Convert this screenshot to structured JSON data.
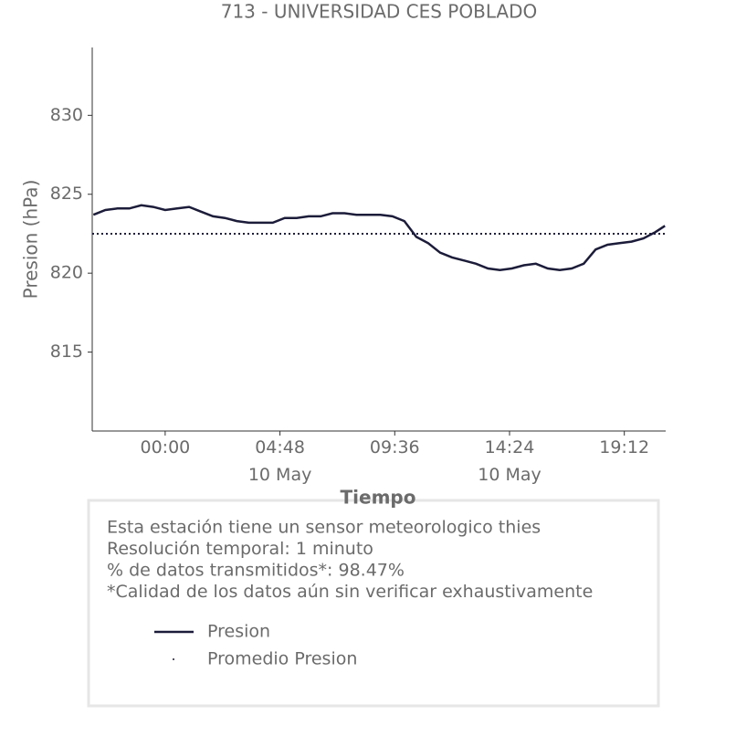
{
  "chart_data": {
    "type": "line",
    "title": "713 - UNIVERSIDAD CES POBLADO",
    "y_label": "Presion (hPa)",
    "x_label": "Tiempo",
    "x": [
      -3.0,
      -2.5,
      -2.0,
      -1.5,
      -1.0,
      -0.5,
      0,
      0.5,
      1.0,
      1.5,
      2.0,
      2.5,
      3.0,
      3.5,
      4.0,
      4.5,
      5.0,
      5.5,
      6.0,
      6.5,
      7.0,
      7.5,
      8.0,
      8.5,
      9.0,
      9.5,
      10.0,
      10.5,
      11.0,
      11.5,
      12.0,
      12.5,
      13.0,
      13.5,
      14.0,
      14.5,
      15.0,
      15.5,
      16.0,
      16.5,
      17.0,
      17.5,
      18.0,
      18.5,
      19.0,
      19.5,
      20.0,
      20.5,
      20.9
    ],
    "series": [
      {
        "name": "Presion",
        "color": "#1c1c3a",
        "values": [
          823.7,
          824.0,
          824.1,
          824.1,
          824.3,
          824.2,
          824.0,
          824.1,
          824.2,
          823.9,
          823.6,
          823.5,
          823.3,
          823.2,
          823.2,
          823.2,
          823.5,
          823.5,
          823.6,
          823.6,
          823.8,
          823.8,
          823.7,
          823.7,
          823.7,
          823.6,
          823.3,
          822.3,
          821.9,
          821.3,
          821.0,
          820.8,
          820.6,
          820.3,
          820.2,
          820.3,
          820.5,
          820.6,
          820.3,
          820.2,
          820.3,
          820.6,
          821.5,
          821.8,
          821.9,
          822.0,
          822.2,
          822.6,
          823.0
        ]
      },
      {
        "name": "Promedio Presion",
        "color": "#1c1c3a",
        "style": "dotted",
        "value": 822.5
      }
    ],
    "xlim": [
      -3.05,
      20.93
    ],
    "ylim": [
      810,
      834.3
    ],
    "yticks": [
      815,
      820,
      825,
      830
    ],
    "xticks": [
      {
        "value": 0,
        "label": "00:00"
      },
      {
        "value": 4.8,
        "label": "04:48\n10 May"
      },
      {
        "value": 9.6,
        "label": "09:36"
      },
      {
        "value": 14.4,
        "label": "14:24\n10 May"
      },
      {
        "value": 19.2,
        "label": "19:12"
      }
    ],
    "info": [
      "Esta estación tiene un sensor meteorologico thies",
      "Resolución temporal: 1 minuto",
      "% de datos transmitidos*: 98.47%",
      "*Calidad de los datos aún sin verificar exhaustivamente"
    ]
  }
}
